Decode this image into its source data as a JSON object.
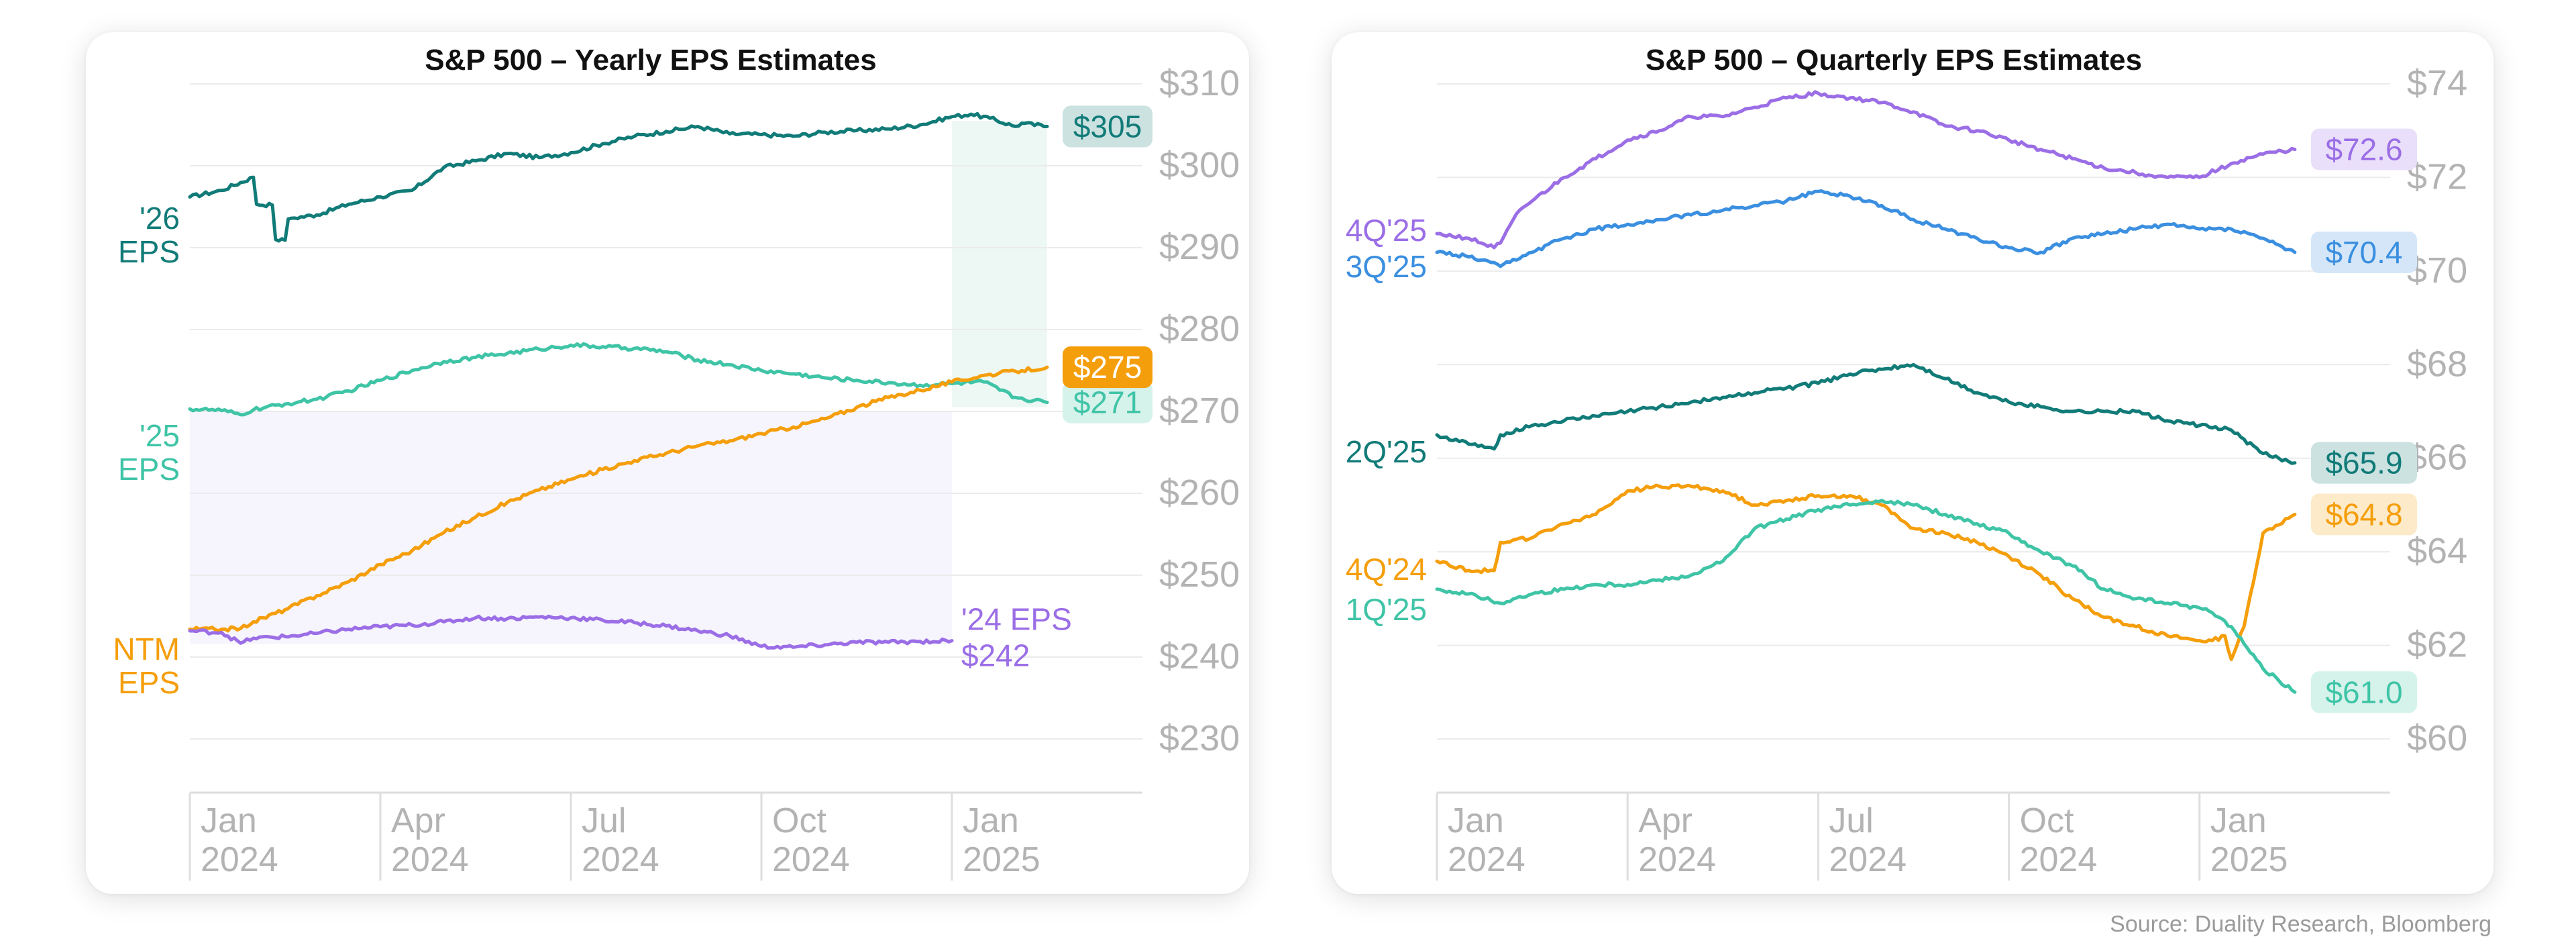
{
  "source": "Source: Duality Research, Bloomberg",
  "chart_data": [
    {
      "type": "line",
      "title": "S&P 500 – Yearly EPS Estimates",
      "x_ticks": [
        [
          "Jan",
          "2024"
        ],
        [
          "Apr",
          "2024"
        ],
        [
          "Jul",
          "2024"
        ],
        [
          "Oct",
          "2024"
        ],
        [
          "Jan",
          "2025"
        ]
      ],
      "x_tick_values": [
        0,
        3,
        6,
        9,
        12
      ],
      "x_range": [
        0,
        15
      ],
      "ylim": [
        230,
        310
      ],
      "y_ticks": [
        "$310",
        "$300",
        "$290",
        "$280",
        "$270",
        "$260",
        "$250",
        "$240",
        "$230"
      ],
      "y_tick_values": [
        310,
        300,
        290,
        280,
        270,
        260,
        250,
        240,
        230
      ],
      "grid": true,
      "shaded_regions": [
        {
          "x_start": 0,
          "x_end": 12.0,
          "y_top": 270,
          "y_bottom": 241.6,
          "color": "#f6f5fd"
        },
        {
          "x_start": 12.0,
          "x_end": 13.5,
          "y_top": 305.5,
          "y_bottom": 270.5,
          "color": "#edf8f5"
        }
      ],
      "series": [
        {
          "name": "'26 EPS",
          "label_lines": [
            "'26",
            "EPS"
          ],
          "color": "#117b78",
          "end_label": "$305",
          "label_style": "badge",
          "x": [
            0,
            0.5,
            1.0,
            1.05,
            1.3,
            1.35,
            1.5,
            1.55,
            1.6,
            2.0,
            2.5,
            3.0,
            3.5,
            4.0,
            4.5,
            5.0,
            5.5,
            6.0,
            6.5,
            7.0,
            7.5,
            8.0,
            8.5,
            9.0,
            9.5,
            10.0,
            10.5,
            11.0,
            11.5,
            12.0,
            12.3,
            12.6,
            13.0,
            13.1,
            13.5
          ],
          "y": [
            296.2,
            297.0,
            298.6,
            295.3,
            295.2,
            291.0,
            290.9,
            293.5,
            293.6,
            294.0,
            295.3,
            296.2,
            297.0,
            299.8,
            300.6,
            301.5,
            301.0,
            301.6,
            302.7,
            303.6,
            304.2,
            304.8,
            303.9,
            303.8,
            303.6,
            304.1,
            304.3,
            304.5,
            305.0,
            306.0,
            306.3,
            305.8,
            304.8,
            305.2,
            304.8
          ]
        },
        {
          "name": "'25 EPS",
          "label_lines": [
            "'25",
            "EPS"
          ],
          "color": "#3fc4a6",
          "end_label": "$271",
          "label_style": "badge",
          "x": [
            0,
            0.5,
            0.8,
            1.0,
            1.5,
            2.0,
            2.5,
            3.0,
            3.5,
            4.0,
            4.5,
            5.0,
            5.5,
            6.0,
            6.5,
            7.0,
            7.5,
            8.0,
            8.5,
            9.0,
            9.5,
            10.0,
            10.5,
            11.0,
            11.5,
            12.0,
            12.5,
            13.0,
            13.5
          ],
          "y": [
            270.3,
            270.1,
            269.6,
            270.2,
            270.9,
            271.5,
            272.5,
            273.8,
            275.0,
            276.1,
            276.6,
            277.1,
            277.6,
            278.1,
            277.9,
            277.7,
            277.3,
            276.3,
            275.7,
            275.0,
            274.6,
            274.1,
            273.8,
            273.5,
            273.2,
            273.4,
            273.6,
            271.7,
            271.1
          ]
        },
        {
          "name": "NTM EPS",
          "label_lines": [
            "NTM",
            "EPS"
          ],
          "color": "#f59e0b",
          "end_label": "$275",
          "label_style": "badge-filled",
          "x": [
            0,
            0.5,
            0.8,
            1.0,
            1.5,
            2.0,
            2.5,
            3.0,
            3.5,
            4.0,
            4.5,
            5.0,
            5.5,
            6.0,
            6.5,
            7.0,
            7.5,
            8.0,
            8.5,
            9.0,
            9.5,
            10.0,
            10.5,
            11.0,
            11.5,
            12.0,
            12.5,
            13.0,
            13.5
          ],
          "y": [
            243.4,
            243.4,
            243.5,
            244.3,
            245.8,
            247.5,
            249.2,
            251.3,
            253.0,
            255.2,
            257.1,
            258.9,
            260.4,
            261.7,
            262.9,
            264.0,
            264.9,
            265.8,
            266.4,
            267.3,
            268.1,
            269.1,
            270.5,
            271.7,
            272.6,
            273.6,
            274.4,
            274.9,
            275.4
          ]
        },
        {
          "name": "'24 EPS",
          "label_lines": [
            "'24 EPS",
            "$242"
          ],
          "color": "#9b6ee6",
          "end_label": "",
          "label_style": "text",
          "x": [
            0,
            0.5,
            0.8,
            1.0,
            1.5,
            2.0,
            2.5,
            3.0,
            3.5,
            4.0,
            4.5,
            5.0,
            5.5,
            6.0,
            6.5,
            7.0,
            7.5,
            8.0,
            8.5,
            9.0,
            9.5,
            10.0,
            10.5,
            11.0,
            11.5,
            12.0
          ],
          "y": [
            243.2,
            243.0,
            241.7,
            242.3,
            242.5,
            242.9,
            243.4,
            243.7,
            243.9,
            244.3,
            244.8,
            244.7,
            244.9,
            244.8,
            244.5,
            244.2,
            243.8,
            243.2,
            242.6,
            241.3,
            241.2,
            241.5,
            241.8,
            241.8,
            241.9,
            242.0
          ]
        }
      ]
    },
    {
      "type": "line",
      "title": "S&P 500 – Quarterly EPS Estimates",
      "x_ticks": [
        [
          "Jan",
          "2024"
        ],
        [
          "Apr",
          "2024"
        ],
        [
          "Jul",
          "2024"
        ],
        [
          "Oct",
          "2024"
        ],
        [
          "Jan",
          "2025"
        ]
      ],
      "x_tick_values": [
        0,
        3,
        6,
        9,
        12
      ],
      "x_range": [
        0,
        15
      ],
      "ylim": [
        60,
        74
      ],
      "y_ticks": [
        "$74",
        "$72",
        "$70",
        "$68",
        "$66",
        "$64",
        "$62",
        "$60"
      ],
      "y_tick_values": [
        74,
        72,
        70,
        68,
        66,
        64,
        62,
        60
      ],
      "grid": true,
      "shaded_regions": [],
      "series": [
        {
          "name": "4Q'25",
          "label_lines": [
            "4Q'25"
          ],
          "color": "#9b6ee6",
          "end_label": "$72.6",
          "label_style": "badge",
          "x": [
            0,
            0.5,
            0.9,
            1.0,
            1.3,
            1.5,
            2.0,
            2.5,
            3.0,
            3.5,
            4.0,
            4.5,
            5.0,
            5.5,
            6.0,
            6.5,
            7.0,
            7.5,
            8.0,
            8.5,
            9.0,
            9.5,
            10.0,
            10.5,
            11.0,
            11.5,
            12.0,
            12.5,
            13.0,
            13.5
          ],
          "y": [
            70.8,
            70.7,
            70.5,
            70.6,
            71.3,
            71.5,
            72.0,
            72.4,
            72.8,
            73.0,
            73.3,
            73.3,
            73.5,
            73.7,
            73.8,
            73.7,
            73.6,
            73.4,
            73.1,
            73.0,
            72.8,
            72.6,
            72.4,
            72.2,
            72.1,
            72.0,
            72.0,
            72.3,
            72.5,
            72.6
          ]
        },
        {
          "name": "3Q'25",
          "label_lines": [
            "3Q'25"
          ],
          "color": "#3b8fe0",
          "end_label": "$70.4",
          "label_style": "badge",
          "x": [
            0,
            0.5,
            1.0,
            1.5,
            2.0,
            2.5,
            3.0,
            3.5,
            4.0,
            4.5,
            5.0,
            5.5,
            6.0,
            6.5,
            7.0,
            7.5,
            8.0,
            8.5,
            9.0,
            9.5,
            10.0,
            10.5,
            11.0,
            11.5,
            12.0,
            12.5,
            13.0,
            13.5
          ],
          "y": [
            70.4,
            70.3,
            70.1,
            70.4,
            70.7,
            70.9,
            71.0,
            71.1,
            71.2,
            71.3,
            71.4,
            71.5,
            71.7,
            71.6,
            71.4,
            71.1,
            70.9,
            70.7,
            70.5,
            70.4,
            70.7,
            70.8,
            70.9,
            71.0,
            70.9,
            70.9,
            70.7,
            70.4
          ]
        },
        {
          "name": "2Q'25",
          "label_lines": [
            "2Q'25"
          ],
          "color": "#117b78",
          "end_label": "$65.9",
          "label_style": "badge",
          "x": [
            0,
            0.5,
            0.9,
            1.0,
            1.5,
            2.0,
            2.5,
            3.0,
            3.5,
            4.0,
            4.5,
            5.0,
            5.5,
            6.0,
            6.5,
            7.0,
            7.5,
            8.0,
            8.5,
            9.0,
            9.5,
            10.0,
            10.5,
            11.0,
            11.5,
            12.0,
            12.5,
            13.0,
            13.5
          ],
          "y": [
            66.5,
            66.3,
            66.2,
            66.5,
            66.7,
            66.8,
            66.9,
            67.0,
            67.1,
            67.2,
            67.3,
            67.4,
            67.5,
            67.6,
            67.8,
            67.9,
            68.0,
            67.7,
            67.4,
            67.2,
            67.1,
            67.0,
            67.0,
            67.0,
            66.8,
            66.7,
            66.6,
            66.1,
            65.9
          ]
        },
        {
          "name": "4Q'24",
          "label_lines": [
            "4Q'24"
          ],
          "color": "#f59e0b",
          "end_label": "$64.8",
          "label_style": "badge",
          "x": [
            0,
            0.5,
            0.9,
            1.0,
            1.5,
            2.0,
            2.5,
            3.0,
            3.5,
            4.0,
            4.5,
            5.0,
            5.5,
            6.0,
            6.5,
            7.0,
            7.5,
            8.0,
            8.5,
            9.0,
            9.5,
            10.0,
            10.5,
            11.0,
            11.5,
            12.0,
            12.2,
            12.4,
            12.5,
            12.7,
            13.0,
            13.5
          ],
          "y": [
            63.8,
            63.6,
            63.6,
            64.2,
            64.3,
            64.6,
            64.8,
            65.3,
            65.4,
            65.4,
            65.3,
            65.0,
            65.1,
            65.2,
            65.2,
            65.0,
            64.5,
            64.4,
            64.2,
            63.9,
            63.5,
            63.0,
            62.6,
            62.4,
            62.2,
            62.1,
            62.1,
            62.2,
            61.7,
            62.4,
            64.4,
            64.8
          ]
        },
        {
          "name": "1Q'25",
          "label_lines": [
            "1Q'25"
          ],
          "color": "#3fc4a6",
          "end_label": "$61.0",
          "label_style": "badge",
          "x": [
            0,
            0.5,
            1.0,
            1.5,
            2.0,
            2.5,
            3.0,
            3.5,
            4.0,
            4.5,
            5.0,
            5.5,
            6.0,
            6.5,
            7.0,
            7.5,
            8.0,
            8.5,
            9.0,
            9.5,
            10.0,
            10.5,
            11.0,
            11.5,
            12.0,
            12.2,
            12.5,
            13.0,
            13.5
          ],
          "y": [
            63.2,
            63.1,
            62.9,
            63.1,
            63.2,
            63.3,
            63.3,
            63.4,
            63.5,
            63.8,
            64.5,
            64.7,
            64.9,
            65.0,
            65.1,
            65.0,
            64.8,
            64.6,
            64.4,
            64.0,
            63.7,
            63.2,
            63.0,
            62.9,
            62.8,
            62.7,
            62.4,
            61.5,
            61.0
          ]
        }
      ]
    }
  ]
}
